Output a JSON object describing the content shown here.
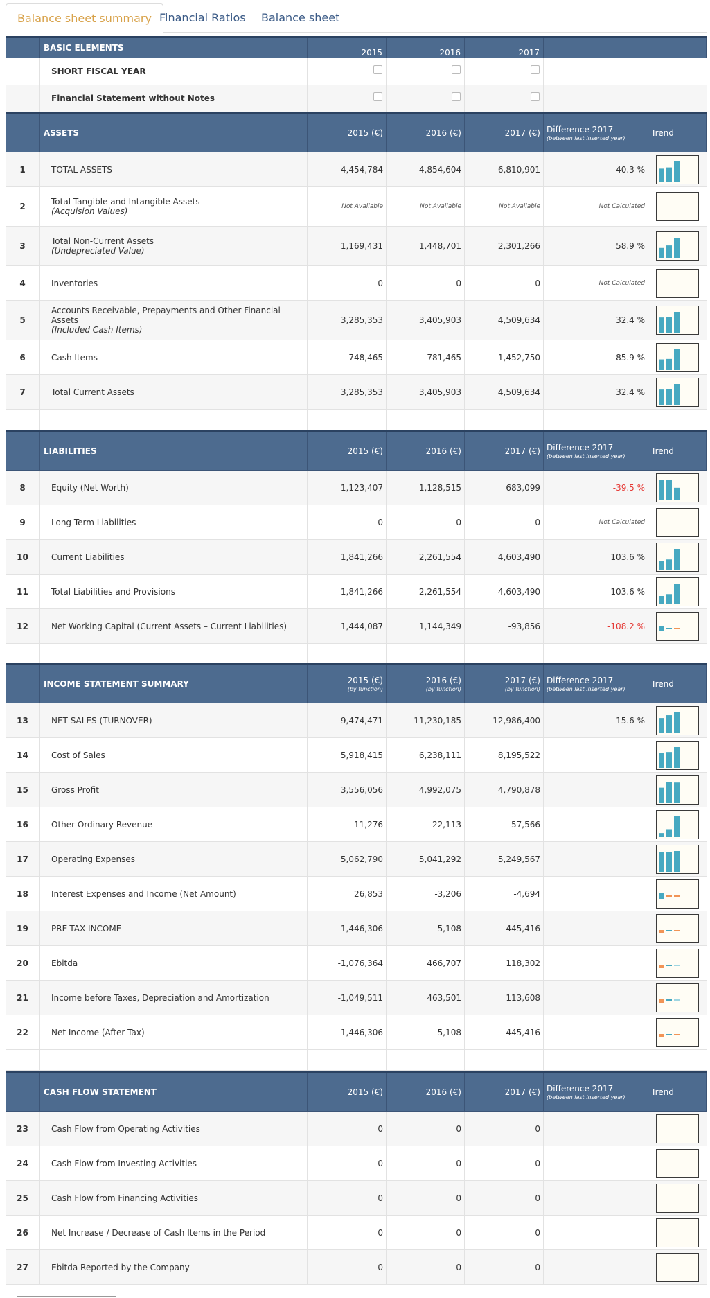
{
  "tabs": [
    {
      "label": "Balance sheet summary",
      "active": true
    },
    {
      "label": "Financial Ratios",
      "active": false
    },
    {
      "label": "Balance sheet",
      "active": false
    }
  ],
  "basic": {
    "title": "BASIC ELEMENTS",
    "years": [
      "2015",
      "2016",
      "2017"
    ],
    "rows": [
      {
        "label": "SHORT FISCAL YEAR"
      },
      {
        "label": "Financial Statement without Notes"
      }
    ]
  },
  "sections": [
    {
      "title": "ASSETS",
      "cols": [
        "2015 (€)",
        "2016 (€)",
        "2017 (€)"
      ],
      "col_sub": "",
      "diff_title": "Difference 2017",
      "diff_sub": "(between last inserted year)",
      "trend": "Trend",
      "rows": [
        {
          "num": "1",
          "label": "TOTAL ASSETS",
          "sub": "",
          "values": [
            "4,454,784",
            "4,854,604",
            "6,810,901"
          ],
          "diff": "40.3 %",
          "trend": [
            4454784,
            4854604,
            6810901
          ]
        },
        {
          "num": "2",
          "label": "Total Tangible and Intangible Assets",
          "sub": "(Acquision Values)",
          "values": [
            "Not Available",
            "Not Available",
            "Not Available"
          ],
          "diff": "Not Calculated",
          "trend": []
        },
        {
          "num": "3",
          "label": "Total Non-Current Assets",
          "sub": "(Undepreciated Value)",
          "values": [
            "1,169,431",
            "1,448,701",
            "2,301,266"
          ],
          "diff": "58.9 %",
          "trend": [
            1169431,
            1448701,
            2301266
          ]
        },
        {
          "num": "4",
          "label": "Inventories",
          "sub": "",
          "values": [
            "0",
            "0",
            "0"
          ],
          "diff": "Not Calculated",
          "trend": []
        },
        {
          "num": "5",
          "label": "Accounts Receivable, Prepayments and Other Financial Assets",
          "sub": "(Included Cash Items)",
          "values": [
            "3,285,353",
            "3,405,903",
            "4,509,634"
          ],
          "diff": "32.4 %",
          "trend": [
            3285353,
            3405903,
            4509634
          ]
        },
        {
          "num": "6",
          "label": "Cash Items",
          "sub": "",
          "values": [
            "748,465",
            "781,465",
            "1,452,750"
          ],
          "diff": "85.9 %",
          "trend": [
            748465,
            781465,
            1452750
          ]
        },
        {
          "num": "7",
          "label": "Total Current Assets",
          "sub": "",
          "values": [
            "3,285,353",
            "3,405,903",
            "4,509,634"
          ],
          "diff": "32.4 %",
          "trend": [
            3285353,
            3405903,
            4509634
          ]
        }
      ]
    },
    {
      "title": "LIABILITIES",
      "cols": [
        "2015 (€)",
        "2016 (€)",
        "2017 (€)"
      ],
      "col_sub": "",
      "diff_title": "Difference 2017",
      "diff_sub": "(between last inserted year)",
      "trend": "Trend",
      "rows": [
        {
          "num": "8",
          "label": "Equity (Net Worth)",
          "sub": "",
          "values": [
            "1,123,407",
            "1,128,515",
            "683,099"
          ],
          "diff": "-39.5 %",
          "trend": [
            1123407,
            1128515,
            683099
          ]
        },
        {
          "num": "9",
          "label": "Long Term Liabilities",
          "sub": "",
          "values": [
            "0",
            "0",
            "0"
          ],
          "diff": "Not Calculated",
          "trend": []
        },
        {
          "num": "10",
          "label": "Current Liabilities",
          "sub": "",
          "values": [
            "1,841,266",
            "2,261,554",
            "4,603,490"
          ],
          "diff": "103.6 %",
          "trend": [
            1841266,
            2261554,
            4603490
          ]
        },
        {
          "num": "11",
          "label": "Total Liabilities and Provisions",
          "sub": "",
          "values": [
            "1,841,266",
            "2,261,554",
            "4,603,490"
          ],
          "diff": "103.6 %",
          "trend": [
            1841266,
            2261554,
            4603490
          ]
        },
        {
          "num": "12",
          "label": "Net Working Capital (Current Assets – Current Liabilities)",
          "sub": "",
          "values": [
            "1,444,087",
            "1,144,349",
            "-93,856"
          ],
          "diff": "-108.2 %",
          "trend": [
            1444087,
            1144349,
            -93856
          ]
        }
      ]
    },
    {
      "title": "INCOME STATEMENT SUMMARY",
      "cols": [
        "2015 (€)",
        "2016 (€)",
        "2017 (€)"
      ],
      "col_sub": "(by function)",
      "diff_title": "Difference 2017",
      "diff_sub": "(between last inserted year)",
      "trend": "Trend",
      "rows": [
        {
          "num": "13",
          "label": "NET SALES (TURNOVER)",
          "sub": "",
          "values": [
            "9,474,471",
            "11,230,185",
            "12,986,400"
          ],
          "diff": "15.6 %",
          "trend": [
            9474471,
            11230185,
            12986400
          ]
        },
        {
          "num": "14",
          "label": "Cost of Sales",
          "sub": "",
          "values": [
            "5,918,415",
            "6,238,111",
            "8,195,522"
          ],
          "diff": "",
          "trend": [
            5918415,
            6238111,
            8195522
          ]
        },
        {
          "num": "15",
          "label": "Gross Profit",
          "sub": "",
          "values": [
            "3,556,056",
            "4,992,075",
            "4,790,878"
          ],
          "diff": "",
          "trend": [
            3556056,
            4992075,
            4790878
          ]
        },
        {
          "num": "16",
          "label": "Other Ordinary Revenue",
          "sub": "",
          "values": [
            "11,276",
            "22,113",
            "57,566"
          ],
          "diff": "",
          "trend": [
            11276,
            22113,
            57566
          ]
        },
        {
          "num": "17",
          "label": "Operating Expenses",
          "sub": "",
          "values": [
            "5,062,790",
            "5,041,292",
            "5,249,567"
          ],
          "diff": "",
          "trend": [
            5062790,
            5041292,
            5249567
          ]
        },
        {
          "num": "18",
          "label": "Interest Expenses and Income (Net Amount)",
          "sub": "",
          "values": [
            "26,853",
            "-3,206",
            "-4,694"
          ],
          "diff": "",
          "trend": [
            26853,
            -3206,
            -4694
          ]
        },
        {
          "num": "19",
          "label": "PRE-TAX INCOME",
          "sub": "",
          "values": [
            "-1,446,306",
            "5,108",
            "-445,416"
          ],
          "diff": "",
          "trend": [
            -1446306,
            5108,
            -445416
          ]
        },
        {
          "num": "20",
          "label": "Ebitda",
          "sub": "",
          "values": [
            "-1,076,364",
            "466,707",
            "118,302"
          ],
          "diff": "",
          "trend": [
            -1076364,
            466707,
            118302
          ]
        },
        {
          "num": "21",
          "label": "Income before Taxes, Depreciation and Amortization",
          "sub": "",
          "values": [
            "-1,049,511",
            "463,501",
            "113,608"
          ],
          "diff": "",
          "trend": [
            -1049511,
            463501,
            113608
          ]
        },
        {
          "num": "22",
          "label": "Net Income (After Tax)",
          "sub": "",
          "values": [
            "-1,446,306",
            "5,108",
            "-445,416"
          ],
          "diff": "",
          "trend": [
            -1446306,
            5108,
            -445416
          ]
        }
      ]
    },
    {
      "title": "CASH FLOW STATEMENT",
      "cols": [
        "2015 (€)",
        "2016 (€)",
        "2017 (€)"
      ],
      "col_sub": "",
      "diff_title": "Difference 2017",
      "diff_sub": "(between last inserted year)",
      "trend": "Trend",
      "rows": [
        {
          "num": "23",
          "label": "Cash Flow from Operating Activities",
          "sub": "",
          "values": [
            "0",
            "0",
            "0"
          ],
          "diff": "",
          "trend": []
        },
        {
          "num": "24",
          "label": "Cash Flow from Investing Activities",
          "sub": "",
          "values": [
            "0",
            "0",
            "0"
          ],
          "diff": "",
          "trend": []
        },
        {
          "num": "25",
          "label": "Cash Flow from Financing Activities",
          "sub": "",
          "values": [
            "0",
            "0",
            "0"
          ],
          "diff": "",
          "trend": []
        },
        {
          "num": "26",
          "label": "Net Increase / Decrease of Cash Items in the Period",
          "sub": "",
          "values": [
            "0",
            "0",
            "0"
          ],
          "diff": "",
          "trend": []
        },
        {
          "num": "27",
          "label": "Ebitda Reported by the Company",
          "sub": "",
          "values": [
            "0",
            "0",
            "0"
          ],
          "diff": "",
          "trend": []
        }
      ]
    }
  ],
  "colors": {
    "header_bg": "#4d6b8f",
    "tab_active": "#d8a24a",
    "tab_inactive": "#3a5a86",
    "bar_positive": "#47a9c1",
    "bar_negative": "#f19456",
    "bar_positive_light": "#9fd6e2",
    "negative_text": "#e53935"
  }
}
